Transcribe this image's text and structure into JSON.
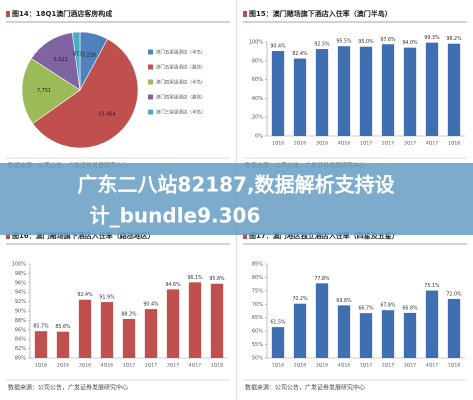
{
  "chart_data": [
    {
      "type": "pie",
      "title": "图14：18Q1澳门酒店客房构成",
      "categories": [
        "澳门五星级酒店（半岛）",
        "澳门五星级酒店（路氹）",
        "澳门四星级酒店（半岛）",
        "澳门四星级酒店（路氹）",
        "澳门三星级酒店（半岛）"
      ],
      "values": [
        3228,
        23464,
        7751,
        5621,
        873
      ],
      "value_labels": [
        "3,228",
        "23,464",
        "7,751",
        "5,621",
        "873"
      ],
      "colors": [
        "#4f81bd",
        "#c0504d",
        "#9bbb59",
        "#8064a2",
        "#4bacc6"
      ],
      "source": "数据来源：公司公告，广发证券发展研究中心"
    },
    {
      "type": "bar",
      "title": "图15：澳门赌场旗下酒店入住率（澳门半岛）",
      "categories": [
        "1Q16",
        "2Q16",
        "3Q16",
        "4Q16",
        "1Q17",
        "2Q17",
        "3Q17",
        "4Q17",
        "1Q18"
      ],
      "values": [
        90.4,
        82.4,
        92.5,
        95.5,
        95.0,
        97.6,
        94.0,
        99.3,
        98.2
      ],
      "value_labels": [
        "90.4%",
        "82.4%",
        "92.5%",
        "95.5%",
        "95.0%",
        "97.6%",
        "94.0%",
        "99.3%",
        "98.2%"
      ],
      "color": "#3f6fb0",
      "ylim": [
        0,
        100
      ],
      "yticks": [
        {
          "value": 0,
          "label": "0%"
        },
        {
          "value": 20,
          "label": "20%"
        },
        {
          "value": 40,
          "label": "40%"
        },
        {
          "value": 60,
          "label": "60%"
        },
        {
          "value": 80,
          "label": "80%"
        },
        {
          "value": 100,
          "label": "100%"
        }
      ],
      "grid": false,
      "source": "数据来源：公司公告，广发证券发展研究中心"
    },
    {
      "type": "bar",
      "title": "图16：澳门赌场旗下酒店入住率（路氹地区）",
      "categories": [
        "1Q16",
        "2Q16",
        "3Q16",
        "4Q16",
        "1Q17",
        "2Q17",
        "3Q17",
        "4Q17",
        "1Q18"
      ],
      "values": [
        85.7,
        85.6,
        92.4,
        91.9,
        88.3,
        90.4,
        94.6,
        96.1,
        95.8
      ],
      "value_labels": [
        "85.7%",
        "85.6%",
        "92.4%",
        "91.9%",
        "88.3%",
        "90.4%",
        "94.6%",
        "96.1%",
        "95.8%"
      ],
      "color": "#c0504d",
      "ylim": [
        80,
        100
      ],
      "yticks": [
        {
          "value": 80,
          "label": "80%"
        },
        {
          "value": 82,
          "label": "82%"
        },
        {
          "value": 84,
          "label": "84%"
        },
        {
          "value": 86,
          "label": "86%"
        },
        {
          "value": 88,
          "label": "88%"
        },
        {
          "value": 90,
          "label": "90%"
        },
        {
          "value": 92,
          "label": "92%"
        },
        {
          "value": 94,
          "label": "94%"
        },
        {
          "value": 96,
          "label": "96%"
        },
        {
          "value": 98,
          "label": "98%"
        },
        {
          "value": 100,
          "label": "100%"
        }
      ],
      "grid": false,
      "source": "数据来源：公司公告，广发证券发展研究中心"
    },
    {
      "type": "bar",
      "title": "图17：澳门地区独立酒店入住率（四星及五星）",
      "categories": [
        "1Q16",
        "2Q16",
        "3Q16",
        "4Q16",
        "1Q17",
        "2Q17",
        "3Q17",
        "4Q17",
        "1Q18"
      ],
      "values": [
        61.5,
        70.2,
        77.8,
        69.6,
        66.7,
        67.8,
        66.8,
        75.1,
        72.0
      ],
      "value_labels": [
        "61.5%",
        "70.2%",
        "77.8%",
        "69.6%",
        "66.7%",
        "67.8%",
        "66.8%",
        "75.1%",
        "72.0%"
      ],
      "color": "#3f6fb0",
      "ylim": [
        50,
        85
      ],
      "yticks": [
        {
          "value": 50,
          "label": "50%"
        },
        {
          "value": 55,
          "label": "55%"
        },
        {
          "value": 60,
          "label": "60%"
        },
        {
          "value": 65,
          "label": "65%"
        },
        {
          "value": 70,
          "label": "70%"
        },
        {
          "value": 75,
          "label": "75%"
        },
        {
          "value": 80,
          "label": "80%"
        },
        {
          "value": 85,
          "label": "85%"
        }
      ],
      "grid": false,
      "source": "数据来源：公司公告，广发证券发展研究中心"
    }
  ],
  "banner": {
    "line1": "广东二八站82187,数据解析支持设",
    "line2": "计_bundle9.306"
  }
}
